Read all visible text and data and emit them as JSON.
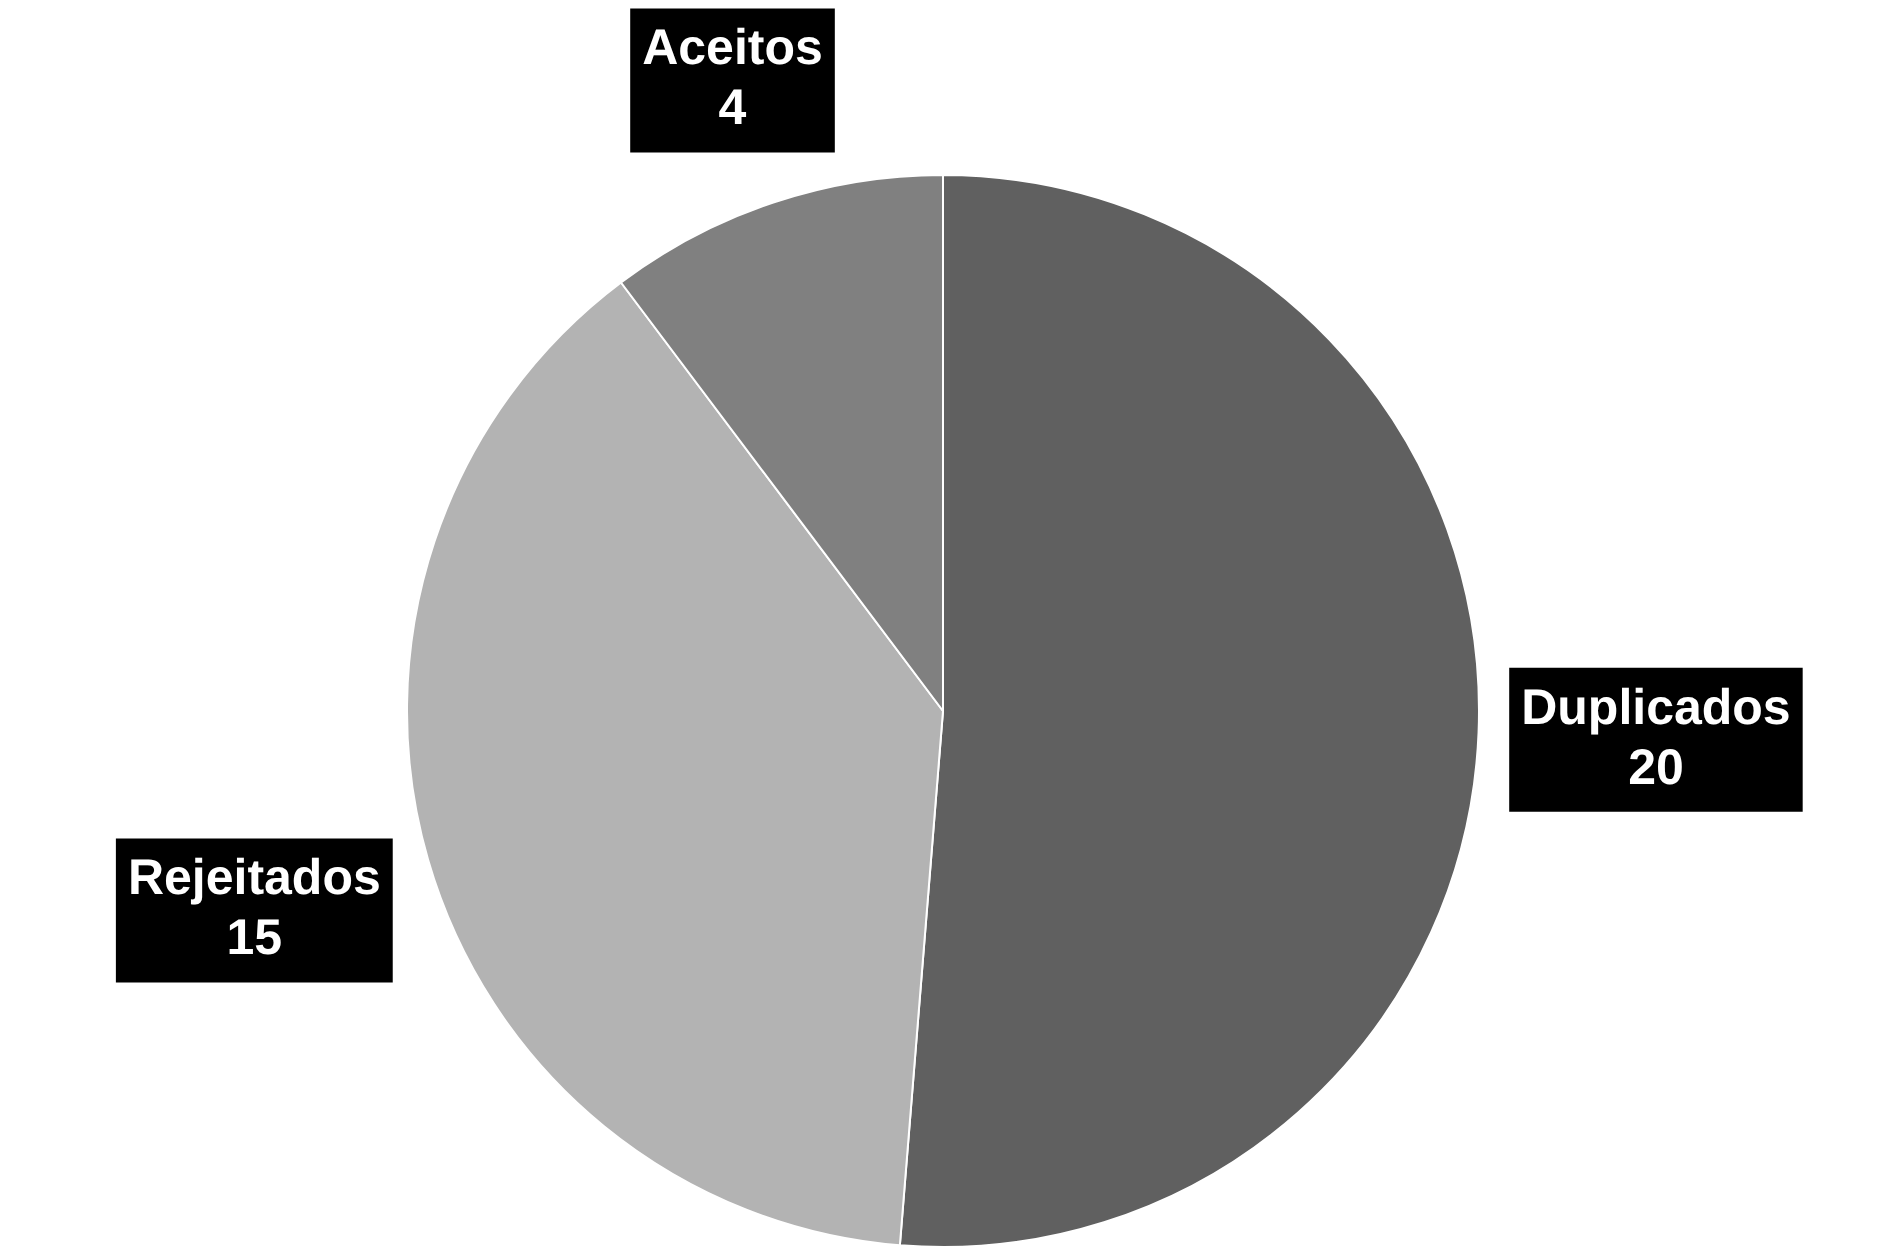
{
  "chart_data": {
    "type": "pie",
    "categories": [
      "Duplicados",
      "Rejeitados",
      "Aceitos"
    ],
    "values": [
      20,
      15,
      4
    ],
    "colors": [
      "#606060",
      "#b3b3b3",
      "#808080"
    ],
    "data_labels": true,
    "legend": false
  }
}
